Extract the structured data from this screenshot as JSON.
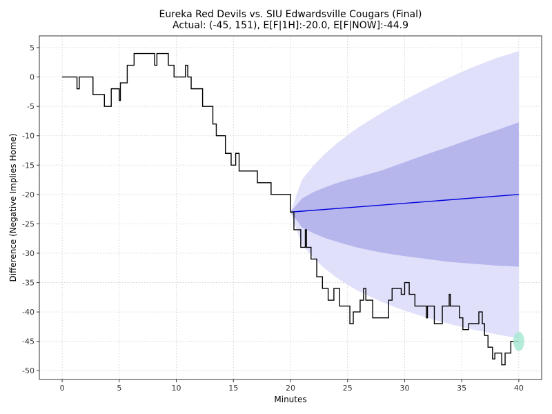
{
  "chart_data": {
    "type": "line",
    "title": "Eureka Red Devils vs. SIU Edwardsville Cougars (Final)",
    "subtitle": "Actual: (-45, 151), E[F|1H]:-20.0, E[F|NOW]:-44.9",
    "xlabel": "Minutes",
    "ylabel": "Difference (Negative Implies Home)",
    "xlim": [
      -2,
      42
    ],
    "ylim": [
      -51.5,
      7
    ],
    "xticks": [
      0,
      5,
      10,
      15,
      20,
      25,
      30,
      35,
      40
    ],
    "yticks": [
      5,
      0,
      -5,
      -10,
      -15,
      -20,
      -25,
      -30,
      -35,
      -40,
      -45,
      -50
    ],
    "grid": true,
    "colors": {
      "score_line": "#000000",
      "expectation_line": "#0000dd",
      "outer_band": "#e0e0fb",
      "inner_band": "#b6b6ec",
      "final_marker": "#a8e8d4"
    },
    "series": [
      {
        "name": "score_difference",
        "style": "step",
        "x": [
          0,
          1.3,
          1.5,
          2.7,
          3.7,
          4.3,
          5.0,
          5.1,
          5.7,
          6.3,
          8.1,
          8.3,
          9.3,
          9.8,
          10.8,
          11.0,
          11.3,
          12.3,
          13.2,
          13.5,
          14.3,
          14.8,
          15.2,
          15.5,
          17.1,
          18.3,
          20.0,
          20.3,
          20.9,
          21.3,
          21.4,
          21.8,
          22.3,
          22.8,
          23.3,
          23.8,
          24.3,
          25.2,
          25.5,
          26.1,
          26.4,
          26.6,
          27.2,
          28.6,
          28.9,
          29.7,
          30.0,
          30.4,
          30.9,
          31.9,
          32.0,
          32.6,
          33.3,
          33.9,
          34.0,
          34.8,
          35.1,
          35.6,
          36.5,
          36.8,
          37.0,
          37.3,
          37.7,
          37.9,
          38.5,
          38.8,
          39.3,
          39.8,
          40.0
        ],
        "y": [
          0,
          -2,
          0,
          -3,
          -5,
          -2,
          -4,
          -1,
          2,
          4,
          2,
          4,
          2,
          0,
          2,
          0,
          -2,
          -5,
          -8,
          -10,
          -13,
          -15,
          -13,
          -16,
          -18,
          -20,
          -23,
          -26,
          -29,
          -26,
          -29,
          -31,
          -34,
          -36,
          -38,
          -36,
          -39,
          -42,
          -40,
          -38,
          -36,
          -38,
          -41,
          -38,
          -36,
          -37,
          -35,
          -37,
          -39,
          -41,
          -39,
          -42,
          -39,
          -37,
          -39,
          -41,
          -43,
          -42,
          -40,
          -42,
          -44,
          -46,
          -48,
          -47,
          -49,
          -47,
          -45,
          -45,
          -45
        ]
      },
      {
        "name": "expected_final",
        "style": "line",
        "x": [
          20,
          40
        ],
        "y": [
          -23,
          -20
        ]
      },
      {
        "name": "inner_band",
        "style": "band",
        "x": [
          20,
          21,
          22,
          23,
          24,
          25,
          26,
          28,
          30,
          32,
          34,
          36,
          38,
          40
        ],
        "lower": [
          -23,
          -25.6,
          -26.6,
          -27.4,
          -28,
          -28.6,
          -29.1,
          -29.9,
          -30.5,
          -31,
          -31.5,
          -31.8,
          -32.1,
          -32.3
        ],
        "upper": [
          -23,
          -20.7,
          -19.6,
          -18.8,
          -18.1,
          -17.5,
          -17,
          -15.9,
          -14.5,
          -13.1,
          -11.8,
          -10.4,
          -9.1,
          -7.7
        ]
      },
      {
        "name": "outer_band",
        "style": "band",
        "x": [
          20,
          21,
          22,
          23,
          24,
          25,
          26,
          28,
          30,
          32,
          34,
          36,
          38,
          40
        ],
        "lower": [
          -23,
          -28.5,
          -30.8,
          -32.6,
          -34.1,
          -35.4,
          -36.5,
          -38.3,
          -39.8,
          -41,
          -42.1,
          -43,
          -43.8,
          -44.5
        ],
        "upper": [
          -23,
          -17.5,
          -15.1,
          -13.1,
          -11.4,
          -9.9,
          -8.5,
          -6.1,
          -3.9,
          -1.9,
          0,
          1.7,
          3.2,
          4.4
        ]
      }
    ],
    "final_point": {
      "x": 40,
      "y": -45
    }
  }
}
